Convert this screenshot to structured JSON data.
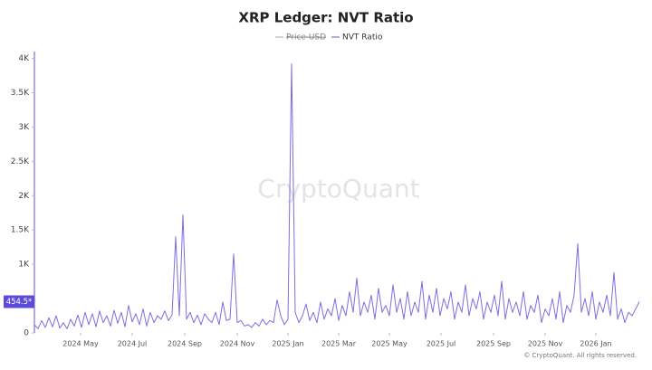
{
  "chart_data": {
    "type": "line",
    "title": "XRP Ledger: NVT Ratio",
    "watermark": "CryptoQuant",
    "footer": "© CryptoQuant. All rights reserved.",
    "hidden_series": [
      {
        "name": "Price USD",
        "color": "#aaaaaa"
      }
    ],
    "series": [
      {
        "name": "NVT Ratio",
        "color": "#7b6fe0",
        "values": [
          120,
          60,
          180,
          80,
          220,
          90,
          250,
          70,
          150,
          60,
          200,
          100,
          260,
          80,
          300,
          120,
          280,
          90,
          320,
          150,
          250,
          100,
          330,
          140,
          300,
          90,
          400,
          160,
          280,
          120,
          350,
          100,
          300,
          150,
          250,
          200,
          320,
          180,
          260,
          1400,
          250,
          1720,
          200,
          300,
          150,
          260,
          120,
          280,
          200,
          150,
          300,
          120,
          450,
          180,
          200,
          1150,
          150,
          180,
          100,
          120,
          80,
          150,
          100,
          200,
          120,
          180,
          150,
          480,
          250,
          120,
          200,
          3920,
          300,
          150,
          250,
          420,
          180,
          300,
          150,
          450,
          200,
          350,
          250,
          500,
          180,
          400,
          250,
          600,
          300,
          800,
          250,
          450,
          300,
          550,
          200,
          650,
          300,
          400,
          250,
          700,
          300,
          500,
          200,
          600,
          250,
          450,
          300,
          750,
          200,
          550,
          300,
          650,
          250,
          500,
          350,
          600,
          200,
          450,
          300,
          700,
          250,
          500,
          350,
          600,
          200,
          450,
          300,
          550,
          250,
          750,
          200,
          500,
          300,
          450,
          250,
          600,
          200,
          400,
          300,
          550,
          150,
          350,
          250,
          500,
          200,
          600,
          150,
          400,
          300,
          550,
          1300,
          300,
          500,
          250,
          600,
          200,
          450,
          300,
          550,
          250,
          880,
          200,
          350,
          150,
          300,
          250,
          350,
          454.5
        ]
      }
    ],
    "current_label": "454.5*",
    "xlim": [
      0,
      167
    ],
    "xticks": [
      {
        "value": 12.75,
        "label": "2024 May"
      },
      {
        "value": 27,
        "label": "2024 Jul"
      },
      {
        "value": 41.5,
        "label": "2024 Sep"
      },
      {
        "value": 56,
        "label": "2024 Nov"
      },
      {
        "value": 70,
        "label": "2025 Jan"
      },
      {
        "value": 84,
        "label": "2025 Mar"
      },
      {
        "value": 98,
        "label": "2025 May"
      },
      {
        "value": 112.25,
        "label": "2025 Jul"
      },
      {
        "value": 126.75,
        "label": "2025 Sep"
      },
      {
        "value": 141,
        "label": "2025 Nov"
      },
      {
        "value": 155,
        "label": "2026 Jan"
      }
    ],
    "ylim": [
      0,
      4100
    ],
    "yticks": [
      0,
      {
        "value": 1000,
        "label": "1K"
      },
      {
        "value": 1500,
        "label": "1.5K"
      },
      {
        "value": 2000,
        "label": "2K"
      },
      {
        "value": 2500,
        "label": "2.5K"
      },
      {
        "value": 3000,
        "label": "3K"
      },
      {
        "value": 3500,
        "label": "3.5K"
      },
      {
        "value": 4000,
        "label": "4K"
      }
    ],
    "grid": false
  }
}
